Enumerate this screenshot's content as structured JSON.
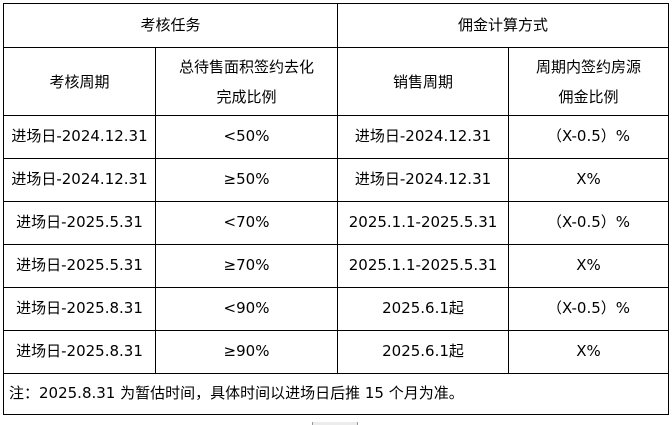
{
  "colors": {
    "background": "#ffffff",
    "border": "#000000",
    "text": "#000000"
  },
  "table": {
    "header_groups": [
      {
        "label": "考核任务",
        "colspan": 2
      },
      {
        "label": "佣金计算方式",
        "colspan": 2
      }
    ],
    "columns": [
      {
        "line1": "考核周期"
      },
      {
        "line1": "总待售面积签约去化",
        "line2": "完成比例"
      },
      {
        "line1": "销售周期"
      },
      {
        "line1": "周期内签约房源",
        "line2": "佣金比例"
      }
    ],
    "rows": [
      [
        "进场日-2024.12.31",
        "<50%",
        "进场日-2024.12.31",
        "（X-0.5）%"
      ],
      [
        "进场日-2024.12.31",
        "≥50%",
        "进场日-2024.12.31",
        "X%"
      ],
      [
        "进场日-2025.5.31",
        "<70%",
        "2025.1.1-2025.5.31",
        "（X-0.5）%"
      ],
      [
        "进场日-2025.5.31",
        "≥70%",
        "2025.1.1-2025.5.31",
        "X%"
      ],
      [
        "进场日-2025.8.31",
        "<90%",
        "2025.6.1起",
        "（X-0.5）%"
      ],
      [
        "进场日-2025.8.31",
        "≥90%",
        "2025.6.1起",
        "X%"
      ]
    ],
    "note": "注：2025.8.31 为暂估时间，具体时间以进场日后推 15 个月为准。"
  }
}
